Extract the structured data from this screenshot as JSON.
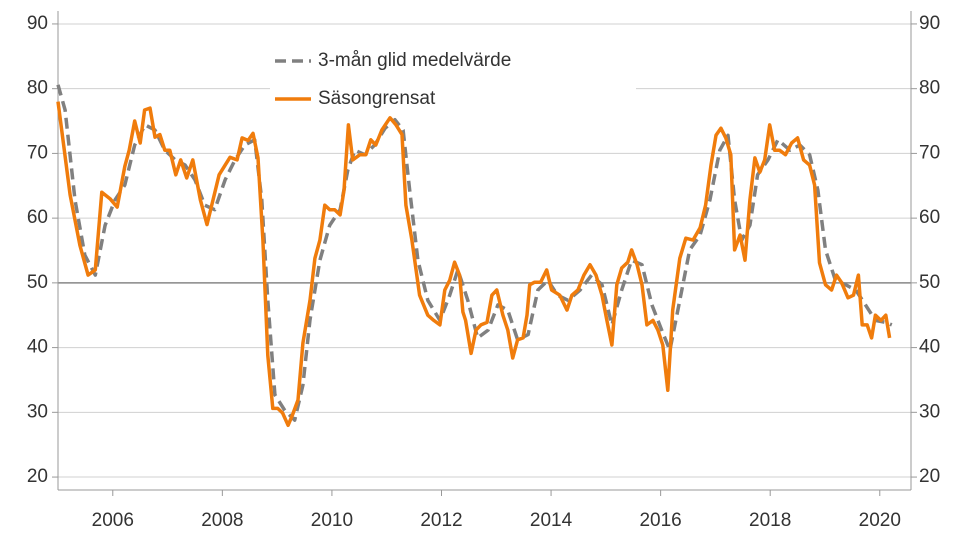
{
  "chart_data": {
    "type": "line",
    "xlim": [
      2005,
      2020.57
    ],
    "xticks": [
      2006,
      2008,
      2010,
      2012,
      2014,
      2016,
      2018,
      2020
    ],
    "ylim": [
      18,
      92
    ],
    "yticks": [
      20,
      30,
      40,
      50,
      60,
      70,
      80,
      90
    ],
    "grid": true,
    "reference_line": 50,
    "right_axis_labels": true,
    "series": [
      {
        "name": "3-mån glid medelvärde",
        "color": "#808080",
        "dashed": true,
        "x": [
          2005,
          2005.13,
          2005.31,
          2005.49,
          2005.68,
          2005.86,
          2006.04,
          2006.22,
          2006.4,
          2006.59,
          2006.77,
          2006.95,
          2007.14,
          2007.32,
          2007.5,
          2007.68,
          2007.86,
          2008.05,
          2008.23,
          2008.41,
          2008.59,
          2008.72,
          2008.83,
          2008.96,
          2009.14,
          2009.32,
          2009.47,
          2009.6,
          2009.78,
          2009.96,
          2010.15,
          2010.29,
          2010.42,
          2010.6,
          2010.78,
          2010.97,
          2011.15,
          2011.3,
          2011.42,
          2011.57,
          2011.75,
          2011.97,
          2012.15,
          2012.3,
          2012.48,
          2012.66,
          2012.85,
          2013.03,
          2013.21,
          2013.39,
          2013.58,
          2013.76,
          2013.94,
          2014.12,
          2014.31,
          2014.53,
          2014.74,
          2014.93,
          2015.11,
          2015.29,
          2015.47,
          2015.66,
          2015.84,
          2016.02,
          2016.17,
          2016.35,
          2016.53,
          2016.72,
          2016.9,
          2017.08,
          2017.23,
          2017.35,
          2017.48,
          2017.63,
          2017.77,
          2017.96,
          2018.14,
          2018.36,
          2018.54,
          2018.72,
          2018.87,
          2019.01,
          2019.19,
          2019.38,
          2019.56,
          2019.74,
          2019.92,
          2020.11,
          2020.22
        ],
        "values": [
          80.6,
          76.7,
          62.8,
          54.3,
          51.2,
          58.9,
          62.8,
          65.1,
          71.3,
          74.4,
          73.6,
          70.5,
          69,
          68.2,
          65.9,
          62,
          61.3,
          65.9,
          69,
          71.3,
          72.1,
          62.8,
          47.3,
          32.7,
          30.3,
          28.8,
          34.2,
          44.3,
          53.5,
          58.9,
          61.3,
          67.4,
          70.5,
          69.8,
          71.3,
          73.9,
          75.2,
          73.6,
          64.3,
          53.5,
          47.3,
          44.2,
          48.1,
          52,
          47.3,
          41.5,
          42.7,
          46.6,
          45.8,
          41.2,
          42,
          48.9,
          50.4,
          48.1,
          47.3,
          48.9,
          51.2,
          49.7,
          43.5,
          48.9,
          53.5,
          52.8,
          46.6,
          42.7,
          39.6,
          47.3,
          55.1,
          57.4,
          62.8,
          70.5,
          72.8,
          62.8,
          56.6,
          58.9,
          66.7,
          69,
          72.1,
          70.5,
          71.3,
          69.8,
          64.3,
          55.1,
          50.4,
          49.7,
          48.9,
          46.6,
          44.2,
          43.9,
          43.5
        ]
      },
      {
        "name": "Säsongrensat",
        "color": "#f07c0c",
        "dashed": false,
        "x": [
          2005,
          2005.22,
          2005.4,
          2005.55,
          2005.68,
          2005.8,
          2005.95,
          2006.08,
          2006.22,
          2006.3,
          2006.4,
          2006.5,
          2006.58,
          2006.68,
          2006.77,
          2006.86,
          2006.95,
          2007.04,
          2007.15,
          2007.24,
          2007.35,
          2007.46,
          2007.6,
          2007.72,
          2007.83,
          2007.94,
          2008.14,
          2008.27,
          2008.36,
          2008.47,
          2008.56,
          2008.65,
          2008.74,
          2008.83,
          2008.92,
          2009.01,
          2009.1,
          2009.2,
          2009.28,
          2009.38,
          2009.47,
          2009.6,
          2009.69,
          2009.78,
          2009.87,
          2009.96,
          2010.05,
          2010.15,
          2010.22,
          2010.3,
          2010.38,
          2010.51,
          2010.62,
          2010.71,
          2010.8,
          2010.91,
          2011.06,
          2011.17,
          2011.28,
          2011.35,
          2011.46,
          2011.6,
          2011.75,
          2011.86,
          2011.97,
          2012.06,
          2012.15,
          2012.24,
          2012.33,
          2012.39,
          2012.44,
          2012.54,
          2012.63,
          2012.72,
          2012.83,
          2012.92,
          2013.01,
          2013.12,
          2013.21,
          2013.3,
          2013.39,
          2013.49,
          2013.56,
          2013.61,
          2013.7,
          2013.81,
          2013.92,
          2014.01,
          2014.16,
          2014.29,
          2014.38,
          2014.49,
          2014.6,
          2014.71,
          2014.82,
          2014.93,
          2015.02,
          2015.11,
          2015.2,
          2015.29,
          2015.4,
          2015.47,
          2015.57,
          2015.66,
          2015.75,
          2015.86,
          2015.95,
          2016.04,
          2016.13,
          2016.22,
          2016.35,
          2016.46,
          2016.59,
          2016.72,
          2016.82,
          2016.92,
          2017.01,
          2017.1,
          2017.19,
          2017.28,
          2017.35,
          2017.45,
          2017.54,
          2017.63,
          2017.72,
          2017.81,
          2017.9,
          2017.99,
          2018.08,
          2018.17,
          2018.28,
          2018.39,
          2018.5,
          2018.61,
          2018.72,
          2018.81,
          2018.9,
          2019.01,
          2019.12,
          2019.21,
          2019.3,
          2019.42,
          2019.52,
          2019.61,
          2019.68,
          2019.77,
          2019.85,
          2019.92,
          2020.02,
          2020.11,
          2020.18
        ],
        "values": [
          78,
          63.6,
          55.8,
          51.2,
          52,
          64,
          63,
          61.7,
          68,
          70.5,
          75,
          71.6,
          76.7,
          77,
          72.5,
          72.9,
          70.5,
          70.5,
          66.7,
          69,
          66.2,
          69,
          62.8,
          59,
          62.8,
          66.7,
          69.4,
          69,
          72.4,
          72,
          73.1,
          69.3,
          56.6,
          38.8,
          30.6,
          30.6,
          29.9,
          28,
          29.6,
          31.9,
          40.7,
          47.3,
          53.8,
          56.6,
          62,
          61.3,
          61.3,
          60.5,
          64.3,
          74.4,
          69,
          69.8,
          69.8,
          72.1,
          71.3,
          73.6,
          75.5,
          74.4,
          72.9,
          62,
          56.6,
          48.1,
          45,
          44.2,
          43.5,
          48.9,
          50.4,
          53.2,
          51.2,
          45.5,
          44.2,
          39.1,
          42.7,
          43.5,
          43.9,
          48.1,
          48.9,
          45,
          42.7,
          38.4,
          41.2,
          41.5,
          45,
          49.7,
          50.1,
          50.1,
          52,
          48.9,
          48.1,
          45.8,
          48.1,
          48.9,
          51.2,
          52.8,
          51.2,
          48.1,
          44.2,
          40.4,
          49.7,
          52.3,
          53.2,
          55.1,
          52.8,
          49.7,
          43.5,
          44.2,
          42.7,
          40.4,
          33.4,
          45.8,
          53.8,
          56.9,
          56.6,
          58.5,
          62,
          68.2,
          72.8,
          73.9,
          72.4,
          69.8,
          55.1,
          57.4,
          53.5,
          62.8,
          69.3,
          67.1,
          69,
          74.4,
          70.5,
          70.5,
          69.8,
          71.6,
          72.4,
          69,
          68.2,
          65.1,
          53.1,
          49.7,
          48.9,
          51.2,
          50.1,
          47.7,
          48.1,
          51.2,
          43.5,
          43.5,
          41.5,
          45,
          44.2,
          45,
          41.5
        ]
      }
    ]
  }
}
